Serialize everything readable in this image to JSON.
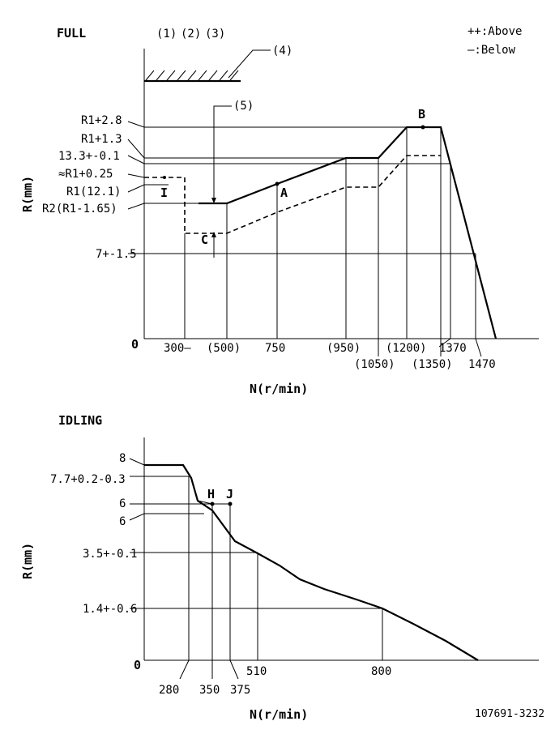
{
  "full": {
    "title": "FULL",
    "markers": [
      "(1)",
      "(2)",
      "(3)"
    ],
    "legend_above": "++:Above",
    "legend_below": "—:Below",
    "callout_4": "(4)",
    "callout_5": "(5)",
    "y_axis_label": "R(mm)",
    "x_axis_label": "N(r/min)",
    "zero": "0",
    "y_labels": [
      "R1+2.8",
      "R1+1.3",
      "13.3+-0.1",
      "≈R1+0.25",
      "R1(12.1)",
      "R2(R1-1.65)",
      "7+-1.5"
    ],
    "x_labels": [
      "300—",
      "(500)",
      "750",
      "(950)",
      "(1050)",
      "(1200)",
      "(1350)",
      "1370",
      "1470"
    ],
    "point_labels": {
      "A": "A",
      "B": "B",
      "C": "C",
      "I": "I"
    }
  },
  "idling": {
    "title": "IDLING",
    "y_axis_label": "R(mm)",
    "x_axis_label": "N(r/min)",
    "zero": "0",
    "y_labels": [
      "8",
      "7.7+0.2-0.3",
      "6",
      "6",
      "3.5+-0.1",
      "1.4+-0.6"
    ],
    "x_labels": [
      "280",
      "350",
      "375",
      "510",
      "800"
    ],
    "point_labels": {
      "H": "H",
      "J": "J"
    }
  },
  "footer": {
    "code": "107691-3232"
  }
}
